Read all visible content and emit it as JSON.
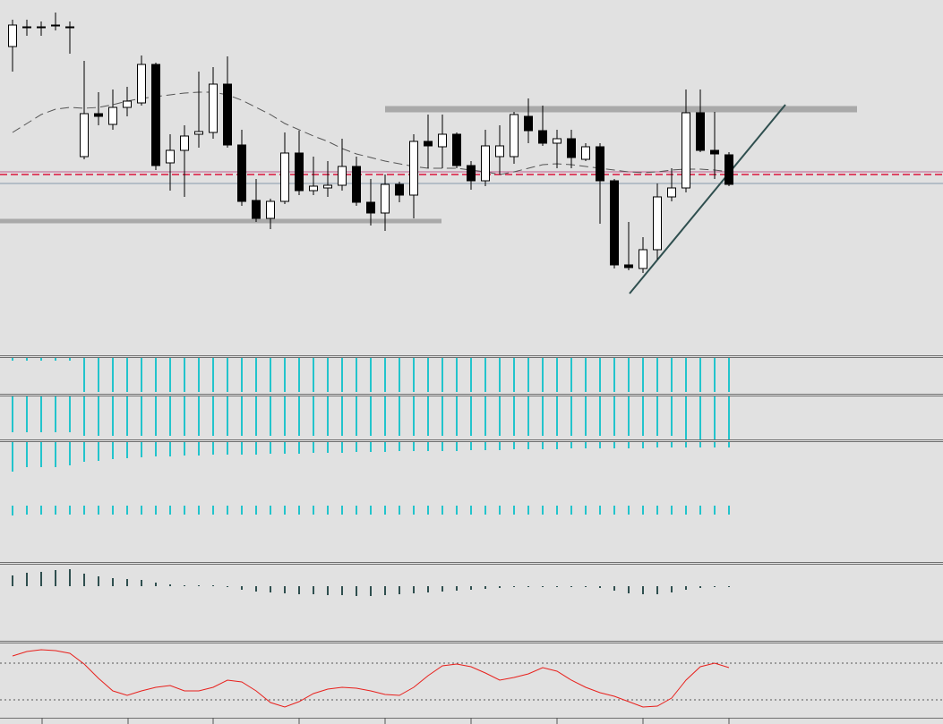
{
  "chart_data": [
    {
      "type": "candlestick",
      "open": [
        348,
        370,
        370,
        372,
        370,
        225,
        273,
        261,
        280,
        285,
        328,
        218,
        232,
        250,
        252,
        306,
        238,
        176,
        156,
        175,
        229,
        187,
        190,
        193,
        214,
        174,
        162,
        194,
        182,
        242,
        236,
        250,
        215,
        198,
        225,
        225,
        270,
        254,
        240,
        245,
        222,
        236,
        198,
        104,
        100,
        121,
        180,
        190,
        274,
        232,
        227
      ],
      "high": [
        378,
        378,
        376,
        386,
        376,
        332,
        297,
        300,
        303,
        338,
        330,
        250,
        260,
        320,
        325,
        337,
        255,
        200,
        178,
        252,
        254,
        225,
        220,
        245,
        225,
        200,
        205,
        197,
        250,
        272,
        272,
        252,
        220,
        255,
        260,
        275,
        290,
        282,
        255,
        255,
        240,
        240,
        200,
        152,
        135,
        195,
        212,
        300,
        300,
        275,
        230
      ],
      "low": [
        320,
        360,
        360,
        366,
        340,
        222,
        260,
        255,
        270,
        282,
        210,
        187,
        180,
        235,
        245,
        235,
        170,
        152,
        144,
        172,
        182,
        182,
        180,
        187,
        170,
        148,
        142,
        174,
        156,
        212,
        212,
        212,
        188,
        192,
        205,
        217,
        240,
        237,
        212,
        212,
        220,
        150,
        100,
        98,
        95,
        110,
        175,
        185,
        230,
        200,
        192
      ],
      "close": [
        372,
        370,
        370,
        372,
        370,
        273,
        270,
        280,
        287,
        328,
        215,
        232,
        248,
        253,
        306,
        238,
        175,
        156,
        175,
        229,
        187,
        192,
        193,
        214,
        174,
        162,
        194,
        182,
        242,
        237,
        250,
        215,
        198,
        237,
        237,
        272,
        254,
        240,
        245,
        224,
        236,
        198,
        104,
        101,
        121,
        180,
        190,
        274,
        232,
        228,
        194
      ],
      "ma": [
        252,
        262,
        272,
        278,
        280,
        279,
        280,
        283,
        287,
        290,
        292,
        294,
        296,
        297,
        297,
        294,
        288,
        280,
        272,
        262,
        255,
        248,
        242,
        234,
        228,
        224,
        220,
        217,
        214,
        212,
        212,
        212,
        210,
        208,
        205,
        208,
        212,
        216,
        217,
        216,
        214,
        212,
        210,
        208,
        207,
        208,
        210,
        211,
        211,
        210,
        208
      ],
      "ma_color": "#555555",
      "up_color": "#ffffff",
      "down_color": "#000000",
      "ylim": [
        0,
        400
      ]
    },
    {
      "type": "bar",
      "color": "#22c4cc",
      "ylim": [
        -40,
        0
      ],
      "values": [
        -3,
        -3,
        -3,
        -3,
        -3,
        -38,
        -38,
        -38,
        -38,
        -38,
        -38,
        -38,
        -38,
        -38,
        -38,
        -38,
        -38,
        -38,
        -38,
        -38,
        -38,
        -38,
        -38,
        -38,
        -38,
        -38,
        -38,
        -38,
        -38,
        -38,
        -38,
        -38,
        -38,
        -38,
        -38,
        -38,
        -38,
        -38,
        -38,
        -38,
        -38,
        -38,
        -38,
        -38,
        -38,
        -38,
        -38,
        -38,
        -38,
        -38,
        -38
      ]
    },
    {
      "type": "bar",
      "color": "#22c4cc",
      "ylim": [
        -48,
        0
      ],
      "values": [
        -40,
        -40,
        -40,
        -40,
        -40,
        -44,
        -44,
        -44,
        -44,
        -44,
        -44,
        -44,
        -44,
        -44,
        -44,
        -44,
        -44,
        -44,
        -44,
        -44,
        -44,
        -44,
        -44,
        -44,
        -44,
        -44,
        -44,
        -44,
        -44,
        -44,
        -44,
        -44,
        -44,
        -44,
        -44,
        -44,
        -44,
        -44,
        -44,
        -44,
        -44,
        -44,
        -44,
        -44,
        -44,
        -44,
        -44,
        -48,
        -48,
        -48,
        -48
      ]
    },
    {
      "type": "bar",
      "color": "#22c4cc",
      "ylim": [
        -66,
        0
      ],
      "values": [
        -33,
        -28,
        -28,
        -28,
        -26,
        -22,
        -21,
        -19,
        -18,
        -17,
        -16,
        -16,
        -15,
        -15,
        -14,
        -14,
        -14,
        -14,
        -13,
        -13,
        -13,
        -12,
        -12,
        -12,
        -11,
        -11,
        -11,
        -10,
        -10,
        -10,
        -10,
        -10,
        -9,
        -9,
        -9,
        -8,
        -8,
        -8,
        -8,
        -7,
        -7,
        -7,
        -7,
        -7,
        -7,
        -6,
        -6,
        -6,
        -6,
        -6,
        -6
      ]
    },
    {
      "type": "bar",
      "color": "#22c4cc",
      "ylim": [
        -62,
        0
      ],
      "values": [
        -11,
        -10,
        -10,
        -10,
        -10,
        -10,
        -10,
        -10,
        -10,
        -10,
        -10,
        -10,
        -10,
        -10,
        -10,
        -10,
        -10,
        -10,
        -10,
        -10,
        -10,
        -10,
        -10,
        -10,
        -10,
        -10,
        -10,
        -10,
        -10,
        -10,
        -10,
        -10,
        -10,
        -10,
        -10,
        -10,
        -10,
        -10,
        -10,
        -10,
        -10,
        -10,
        -10,
        -10,
        -10,
        -10,
        -10,
        -10,
        -10,
        -10,
        -10
      ]
    },
    {
      "type": "bar",
      "color": "#2f4f4f",
      "ylim": [
        -60,
        23
      ],
      "values": [
        12,
        15,
        16,
        18,
        19,
        14,
        11,
        9,
        8,
        7,
        4,
        2,
        1,
        1,
        1,
        0,
        -4,
        -6,
        -7,
        -8,
        -9,
        -9,
        -10,
        -10,
        -11,
        -11,
        -10,
        -9,
        -8,
        -7,
        -6,
        -5,
        -4,
        -3,
        -2,
        -1,
        -1,
        -1,
        -1,
        -1,
        -1,
        -2,
        -5,
        -8,
        -9,
        -9,
        -7,
        -4,
        -2,
        -1,
        -1
      ]
    },
    {
      "type": "line",
      "color": "#e8201c",
      "ylim": [
        0,
        82
      ],
      "levels": [
        59,
        18
      ],
      "values": [
        67,
        72,
        74,
        73,
        70,
        58,
        42,
        28,
        23,
        28,
        32,
        34,
        28,
        28,
        32,
        40,
        38,
        28,
        15,
        10,
        16,
        25,
        30,
        32,
        31,
        28,
        24,
        23,
        32,
        45,
        56,
        58,
        55,
        48,
        40,
        43,
        47,
        54,
        50,
        40,
        32,
        26,
        22,
        16,
        10,
        11,
        20,
        40,
        55,
        59,
        54
      ]
    }
  ]
}
